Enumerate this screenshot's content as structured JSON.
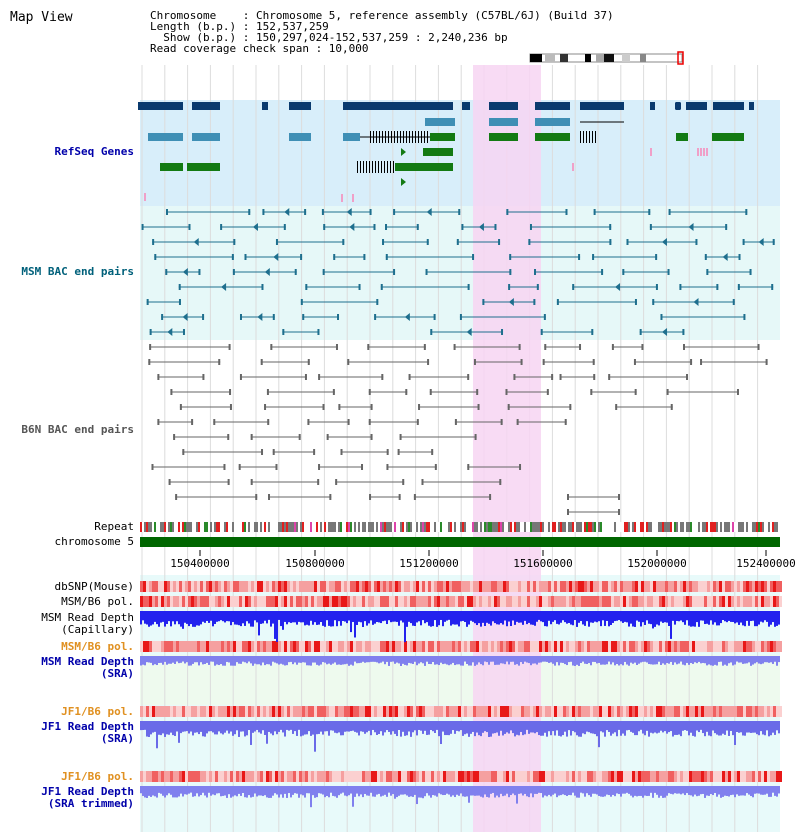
{
  "title": "Map View",
  "info": {
    "chromosome": "Chromosome    : Chromosome 5, reference assembly (C57BL/6J) (Build 37)",
    "length": "Length (b.p.) : 152,537,259",
    "show": "  Show (b.p.) : 150,297,024-152,537,259 : 2,240,236 bp",
    "coverage": "Read coverage check span : 10,000"
  },
  "tracks": {
    "refseq": "RefSeq Genes",
    "msm_bac": "MSM BAC end pairs",
    "b6n_bac": "B6N BAC end pairs",
    "repeat": "Repeat",
    "chromosome": "chromosome 5",
    "dbsnp": "dbSNP(Mouse)",
    "msm_b6_pol": "MSM/B6 pol.",
    "msm_depth_cap_1": "MSM Read Depth",
    "msm_depth_cap_2": "(Capillary)",
    "msm_b6_pol_2": "MSM/B6 pol.",
    "msm_depth_sra_1": "MSM Read Depth",
    "msm_depth_sra_2": "(SRA)",
    "jf1_b6_pol": "JF1/B6 pol.",
    "jf1_depth_1": "JF1 Read Depth",
    "jf1_depth_2": "(SRA)",
    "jf1_b6_pol_2": "JF1/B6 pol.",
    "jf1_trim_1": "JF1 Read Depth",
    "jf1_trim_2": "(SRA trimmed)"
  },
  "axis": {
    "ticks": [
      "150400000",
      "150800000",
      "151200000",
      "151600000",
      "152000000",
      "152400000"
    ]
  },
  "colors": {
    "gene_dark": "#0a3a6e",
    "gene_mid": "#3f8fb5",
    "gene_green": "#137a13",
    "highlight": "#f7d5f2",
    "refseq_bg": "#d8eefa",
    "bac_bg": "#e6f8f8",
    "label_blue": "#0000aa",
    "label_teal": "#00607a",
    "label_gray": "#555555",
    "label_orange": "#e09020",
    "chrom_green": "#006600"
  }
}
